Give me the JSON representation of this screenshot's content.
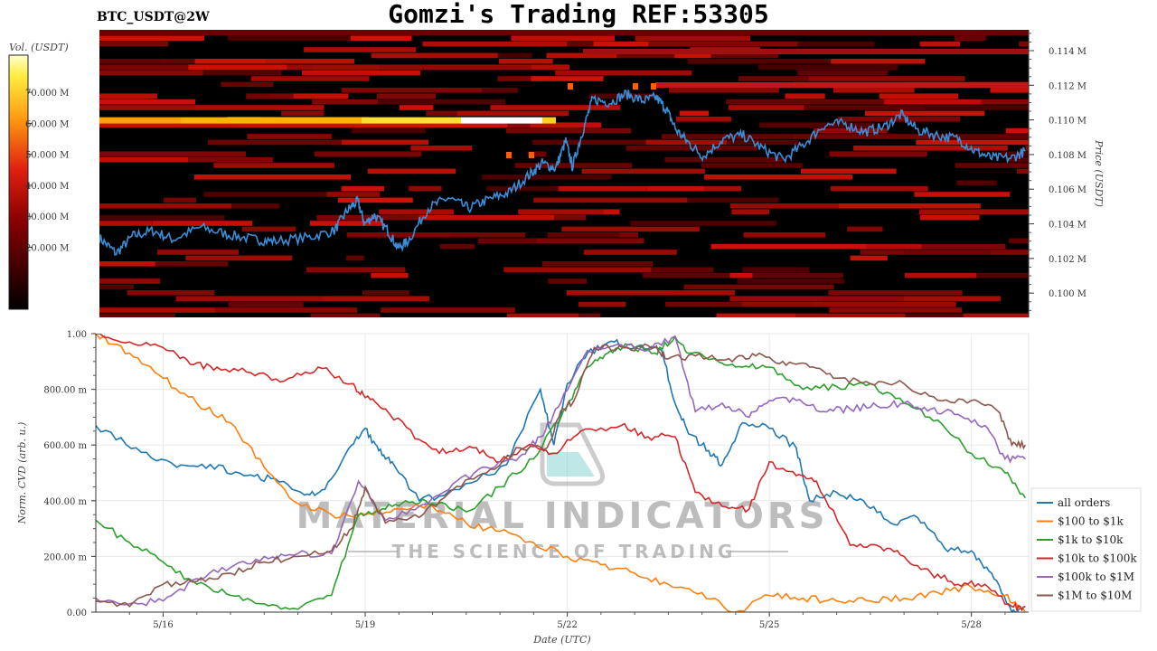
{
  "header": {
    "title": "Gomzi's Trading REF:53305",
    "pair": "BTC_USDT@2W"
  },
  "watermark": {
    "line1": "MATERIAL INDICATORS",
    "line2": "THE SCIENCE OF TRADING"
  },
  "colors": {
    "heatmap_low": "#000000",
    "heatmap_mid": "#b01010",
    "heatmap_high": "#ffff40",
    "heatmap_top": "#ffffff",
    "price_line": "#3a8ed8",
    "series": [
      "#1f77b4",
      "#ff7f0e",
      "#2ca02c",
      "#d62728",
      "#9467bd",
      "#8c564b"
    ]
  },
  "chart_data": [
    {
      "type": "heatmap",
      "colorbar_label": "Vol. (USDT)",
      "colorbar_ticks": [
        "70.000 M",
        "60.000 M",
        "50.000 M",
        "40.000 M",
        "30.000 M",
        "20.000 M"
      ],
      "colorbar_values": [
        70000000,
        60000000,
        50000000,
        40000000,
        30000000,
        20000000
      ],
      "colorbar_range": [
        0,
        82000000
      ],
      "ylabel": "Price (USDT)",
      "yticks": [
        "0.114 M",
        "0.112 M",
        "0.110 M",
        "0.108 M",
        "0.106 M",
        "0.104 M",
        "0.102 M",
        "0.100 M"
      ],
      "ytick_values": [
        114000,
        112000,
        110000,
        108000,
        106000,
        104000,
        102000,
        100000
      ],
      "ylim": [
        98600,
        115200
      ],
      "xlim": [
        0,
        13.85
      ],
      "x_units": "days since 5/15 00:00 UTC",
      "price_series": [
        {
          "x": 0.0,
          "y": 103.2
        },
        {
          "x": 0.25,
          "y": 102.3
        },
        {
          "x": 0.5,
          "y": 103.3
        },
        {
          "x": 0.8,
          "y": 103.6
        },
        {
          "x": 1.1,
          "y": 103.1
        },
        {
          "x": 1.5,
          "y": 103.8
        },
        {
          "x": 1.9,
          "y": 103.4
        },
        {
          "x": 2.3,
          "y": 103.1
        },
        {
          "x": 2.6,
          "y": 103.0
        },
        {
          "x": 3.1,
          "y": 103.2
        },
        {
          "x": 3.5,
          "y": 103.6
        },
        {
          "x": 3.7,
          "y": 104.8
        },
        {
          "x": 3.85,
          "y": 105.3
        },
        {
          "x": 3.95,
          "y": 104.0
        },
        {
          "x": 4.1,
          "y": 104.5
        },
        {
          "x": 4.3,
          "y": 103.6
        },
        {
          "x": 4.45,
          "y": 102.6
        },
        {
          "x": 4.6,
          "y": 103.0
        },
        {
          "x": 4.9,
          "y": 104.9
        },
        {
          "x": 5.2,
          "y": 105.5
        },
        {
          "x": 5.5,
          "y": 104.9
        },
        {
          "x": 5.8,
          "y": 105.4
        },
        {
          "x": 6.1,
          "y": 105.8
        },
        {
          "x": 6.4,
          "y": 106.8
        },
        {
          "x": 6.6,
          "y": 107.5
        },
        {
          "x": 6.8,
          "y": 107.2
        },
        {
          "x": 6.95,
          "y": 108.8
        },
        {
          "x": 7.05,
          "y": 107.3
        },
        {
          "x": 7.2,
          "y": 109.3
        },
        {
          "x": 7.35,
          "y": 111.2
        },
        {
          "x": 7.6,
          "y": 111.0
        },
        {
          "x": 7.85,
          "y": 111.5
        },
        {
          "x": 8.1,
          "y": 111.1
        },
        {
          "x": 8.3,
          "y": 111.3
        },
        {
          "x": 8.45,
          "y": 110.6
        },
        {
          "x": 8.6,
          "y": 109.4
        },
        {
          "x": 8.8,
          "y": 108.6
        },
        {
          "x": 9.0,
          "y": 107.9
        },
        {
          "x": 9.3,
          "y": 108.9
        },
        {
          "x": 9.6,
          "y": 109.1
        },
        {
          "x": 9.9,
          "y": 108.3
        },
        {
          "x": 10.2,
          "y": 107.7
        },
        {
          "x": 10.5,
          "y": 108.6
        },
        {
          "x": 10.8,
          "y": 109.7
        },
        {
          "x": 11.1,
          "y": 109.8
        },
        {
          "x": 11.4,
          "y": 109.3
        },
        {
          "x": 11.7,
          "y": 109.6
        },
        {
          "x": 11.95,
          "y": 110.3
        },
        {
          "x": 12.2,
          "y": 109.4
        },
        {
          "x": 12.5,
          "y": 109.1
        },
        {
          "x": 12.8,
          "y": 108.9
        },
        {
          "x": 13.05,
          "y": 108.2
        },
        {
          "x": 13.3,
          "y": 107.8
        },
        {
          "x": 13.6,
          "y": 107.8
        },
        {
          "x": 13.8,
          "y": 108.2
        }
      ],
      "price_units": "thousand USDT"
    },
    {
      "type": "line",
      "ylabel": "Norm. CVD (arb. u.)",
      "xlabel": "Date (UTC)",
      "yticks": [
        "1.00",
        "800.00 m",
        "600.00 m",
        "400.00 m",
        "200.00 m",
        "0.00"
      ],
      "ytick_values": [
        1.0,
        0.8,
        0.6,
        0.4,
        0.2,
        0.0
      ],
      "ylim": [
        0.0,
        1.0
      ],
      "xticks": [
        "5/16",
        "5/19",
        "5/22",
        "5/25",
        "5/28"
      ],
      "xtick_values": [
        1,
        4,
        7,
        10,
        13
      ],
      "xlim": [
        0,
        13.85
      ],
      "x_units": "days since 5/15 00:00 UTC",
      "legend_position": "right",
      "grid": true,
      "series": [
        {
          "name": "all orders",
          "x": [
            0,
            0.6,
            1.2,
            1.7,
            2.2,
            2.6,
            3.1,
            3.4,
            3.8,
            4.0,
            4.2,
            4.4,
            4.8,
            5.4,
            6.1,
            6.6,
            6.8,
            7.0,
            7.3,
            7.7,
            8.0,
            8.4,
            8.6,
            8.8,
            9.1,
            9.3,
            9.6,
            10.0,
            10.4,
            10.6,
            11.0,
            11.4,
            11.8,
            12.2,
            12.6,
            13.0,
            13.3,
            13.6,
            13.8
          ],
          "y": [
            0.67,
            0.59,
            0.52,
            0.53,
            0.49,
            0.48,
            0.42,
            0.44,
            0.6,
            0.66,
            0.58,
            0.54,
            0.4,
            0.44,
            0.53,
            0.8,
            0.6,
            0.82,
            0.93,
            0.97,
            0.95,
            0.94,
            0.75,
            0.64,
            0.58,
            0.53,
            0.68,
            0.66,
            0.59,
            0.4,
            0.43,
            0.4,
            0.32,
            0.34,
            0.23,
            0.22,
            0.14,
            0.0,
            0.02
          ]
        },
        {
          "name": "$100 to $1k",
          "x": [
            0,
            0.5,
            1.0,
            1.5,
            2.0,
            2.5,
            3.0,
            3.5,
            4.0,
            4.5,
            5.0,
            5.5,
            6.0,
            6.5,
            7.0,
            7.5,
            8.0,
            8.5,
            9.0,
            9.5,
            10.0,
            10.5,
            11.0,
            11.5,
            12.0,
            12.5,
            13.0,
            13.5,
            13.8
          ],
          "y": [
            1.0,
            0.93,
            0.84,
            0.75,
            0.68,
            0.52,
            0.39,
            0.35,
            0.35,
            0.37,
            0.38,
            0.32,
            0.29,
            0.25,
            0.2,
            0.17,
            0.14,
            0.1,
            0.07,
            0.0,
            0.06,
            0.05,
            0.04,
            0.04,
            0.05,
            0.07,
            0.09,
            0.06,
            0.0
          ]
        },
        {
          "name": "$1k to $10k",
          "x": [
            0,
            0.5,
            1.0,
            1.5,
            2.0,
            2.5,
            3.0,
            3.5,
            3.9,
            4.2,
            4.6,
            5.0,
            5.5,
            6.0,
            6.5,
            7.0,
            7.3,
            7.6,
            7.9,
            8.3,
            8.6,
            8.8,
            9.2,
            9.6,
            10.0,
            10.5,
            11.0,
            11.5,
            12.0,
            12.5,
            13.0,
            13.5,
            13.8
          ],
          "y": [
            0.33,
            0.25,
            0.18,
            0.1,
            0.06,
            0.03,
            0.01,
            0.06,
            0.35,
            0.36,
            0.4,
            0.39,
            0.36,
            0.45,
            0.55,
            0.74,
            0.88,
            0.93,
            0.96,
            0.93,
            0.99,
            0.93,
            0.91,
            0.88,
            0.88,
            0.8,
            0.81,
            0.82,
            0.75,
            0.69,
            0.57,
            0.5,
            0.41
          ]
        },
        {
          "name": "$10k to $100k",
          "x": [
            0,
            0.5,
            1.0,
            1.4,
            1.8,
            2.3,
            2.8,
            3.3,
            3.8,
            4.0,
            4.3,
            4.8,
            5.2,
            5.6,
            6.0,
            6.5,
            6.8,
            7.2,
            7.8,
            8.2,
            8.6,
            8.9,
            9.3,
            9.7,
            10.0,
            10.4,
            10.7,
            11.2,
            11.6,
            12.0,
            12.4,
            12.8,
            13.2,
            13.6,
            13.8
          ],
          "y": [
            1.0,
            0.97,
            0.95,
            0.89,
            0.88,
            0.86,
            0.83,
            0.88,
            0.82,
            0.77,
            0.73,
            0.62,
            0.57,
            0.59,
            0.54,
            0.6,
            0.57,
            0.65,
            0.67,
            0.63,
            0.63,
            0.43,
            0.38,
            0.37,
            0.54,
            0.49,
            0.47,
            0.24,
            0.24,
            0.2,
            0.14,
            0.1,
            0.1,
            0.02,
            0.02
          ]
        },
        {
          "name": "$100k to $1M",
          "x": [
            0,
            0.5,
            1.0,
            1.5,
            2.0,
            2.5,
            3.0,
            3.5,
            3.9,
            4.3,
            4.8,
            5.3,
            5.8,
            6.3,
            6.6,
            6.9,
            7.3,
            7.8,
            8.2,
            8.6,
            8.9,
            9.3,
            9.7,
            10.0,
            10.4,
            10.8,
            11.2,
            11.6,
            12.0,
            12.4,
            12.8,
            13.2,
            13.5,
            13.8
          ],
          "y": [
            0.05,
            0.03,
            0.04,
            0.12,
            0.16,
            0.2,
            0.21,
            0.21,
            0.47,
            0.33,
            0.38,
            0.46,
            0.52,
            0.56,
            0.63,
            0.75,
            0.94,
            0.96,
            0.94,
            0.99,
            0.72,
            0.75,
            0.7,
            0.76,
            0.76,
            0.72,
            0.73,
            0.74,
            0.75,
            0.73,
            0.71,
            0.67,
            0.55,
            0.55
          ]
        },
        {
          "name": "$1M to $10M",
          "x": [
            0,
            0.5,
            1.0,
            1.5,
            2.0,
            2.5,
            3.0,
            3.5,
            3.8,
            4.0,
            4.3,
            4.8,
            5.3,
            5.8,
            6.3,
            6.7,
            6.9,
            7.1,
            7.4,
            7.9,
            8.3,
            8.5,
            8.9,
            9.4,
            9.8,
            10.2,
            10.6,
            11.0,
            11.5,
            12.0,
            12.5,
            13.0,
            13.4,
            13.6,
            13.8
          ],
          "y": [
            0.04,
            0.02,
            0.1,
            0.11,
            0.14,
            0.18,
            0.2,
            0.22,
            0.3,
            0.45,
            0.32,
            0.34,
            0.44,
            0.5,
            0.59,
            0.59,
            0.72,
            0.76,
            0.95,
            0.95,
            0.95,
            0.91,
            0.92,
            0.91,
            0.92,
            0.9,
            0.88,
            0.84,
            0.82,
            0.82,
            0.76,
            0.76,
            0.72,
            0.6,
            0.6
          ]
        }
      ]
    }
  ]
}
